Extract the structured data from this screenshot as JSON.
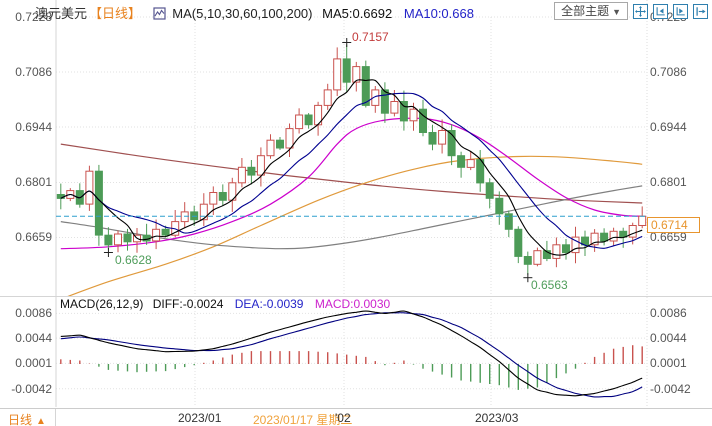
{
  "header": {
    "symbol": "澳元美元",
    "period_tag": "【日线】",
    "ma_label": "MA(5,10,30,60,100,200)",
    "ma5_label": "MA5:0.6692",
    "ma10_label": "MA10:0.668"
  },
  "toolbar": {
    "themes_dropdown": "全部主题",
    "caret": "▼",
    "icons": [
      "pan-crosshair-icon",
      "axis-fit-left-icon",
      "axis-play-right-icon",
      "exit-right-icon"
    ]
  },
  "main_axis": {
    "ticks": [
      "0.7228",
      "0.7086",
      "0.6944",
      "0.6801",
      "0.6659"
    ],
    "price_label": "0.6714"
  },
  "annotations": {
    "high": "0.7157",
    "low1": "0.6628",
    "low2": "0.6563"
  },
  "macd_pane": {
    "header": "MACD(26,12,9)",
    "diff_label": "DIFF:-0.0024",
    "dea_label": "DEA:-0.0039",
    "macd_label": "MACD:0.0030",
    "ticks": [
      "0.0086",
      "0.0044",
      "0.0001",
      "-0.0042"
    ]
  },
  "bottom": {
    "period": "日线",
    "arrow": "▲",
    "x_labels": [
      {
        "text": "2023/01",
        "x": 178
      },
      {
        "text": "'02",
        "x": 335
      },
      {
        "text": "2023/03",
        "x": 475
      }
    ],
    "crosshair_date": "2023/01/17 星期二"
  },
  "chart_data": [
    {
      "type": "candlestick",
      "title": "澳元美元 日线",
      "y_ticks": [
        0.7228,
        0.7086,
        0.6944,
        0.6801,
        0.6659
      ],
      "x_tick_labels": [
        "2023/01",
        "'02",
        "2023/03"
      ],
      "last_price": 0.6714,
      "open_first": 0.677,
      "closes": [
        0.676,
        0.678,
        0.6745,
        0.683,
        0.6665,
        0.664,
        0.6668,
        0.6648,
        0.6665,
        0.665,
        0.668,
        0.6665,
        0.67,
        0.6725,
        0.6705,
        0.6745,
        0.6775,
        0.6755,
        0.68,
        0.684,
        0.682,
        0.687,
        0.691,
        0.689,
        0.694,
        0.6975,
        0.695,
        0.7,
        0.704,
        0.712,
        0.706,
        0.71,
        0.7,
        0.704,
        0.698,
        0.701,
        0.696,
        0.699,
        0.693,
        0.69,
        0.6935,
        0.687,
        0.684,
        0.686,
        0.68,
        0.676,
        0.672,
        0.668,
        0.661,
        0.659,
        0.6625,
        0.6605,
        0.664,
        0.662,
        0.666,
        0.664,
        0.667,
        0.665,
        0.6675,
        0.666,
        0.669,
        0.6714
      ],
      "extremes": {
        "high": {
          "index": 30,
          "value": 0.7157
        },
        "low1": {
          "index": 5,
          "value": 0.6628
        },
        "low2": {
          "index": 49,
          "value": 0.6563
        }
      },
      "moving_averages": {
        "ma5": {
          "color": "#000000",
          "window": 5
        },
        "ma10": {
          "color": "#000090",
          "window": 10
        },
        "ma30": {
          "color": "#cc00cc",
          "points": [
            [
              0,
              0.663
            ],
            [
              5,
              0.6635
            ],
            [
              10,
              0.6648
            ],
            [
              14,
              0.6668
            ],
            [
              18,
              0.67
            ],
            [
              22,
              0.6745
            ],
            [
              26,
              0.6815
            ],
            [
              29,
              0.69
            ],
            [
              31,
              0.694
            ],
            [
              34,
              0.6962
            ],
            [
              38,
              0.6966
            ],
            [
              41,
              0.695
            ],
            [
              44,
              0.6915
            ],
            [
              47,
              0.6865
            ],
            [
              50,
              0.681
            ],
            [
              53,
              0.6762
            ],
            [
              56,
              0.673
            ],
            [
              59,
              0.6716
            ],
            [
              61,
              0.6714
            ]
          ]
        },
        "ma60": {
          "color": "#808080",
          "points": [
            [
              0,
              0.67
            ],
            [
              4,
              0.6685
            ],
            [
              8,
              0.6668
            ],
            [
              12,
              0.6652
            ],
            [
              16,
              0.664
            ],
            [
              20,
              0.6633
            ],
            [
              23,
              0.663
            ],
            [
              26,
              0.6633
            ],
            [
              30,
              0.6645
            ],
            [
              34,
              0.6662
            ],
            [
              38,
              0.6682
            ],
            [
              42,
              0.6702
            ],
            [
              46,
              0.6722
            ],
            [
              50,
              0.6742
            ],
            [
              54,
              0.6762
            ],
            [
              58,
              0.678
            ],
            [
              61,
              0.6792
            ]
          ]
        },
        "ma100": {
          "color": "#e09a3c",
          "points": [
            [
              0,
              0.65
            ],
            [
              5,
              0.6545
            ],
            [
              11,
              0.659
            ],
            [
              16,
              0.6635
            ],
            [
              21,
              0.669
            ],
            [
              27,
              0.6755
            ],
            [
              32,
              0.68
            ],
            [
              37,
              0.6835
            ],
            [
              42,
              0.6858
            ],
            [
              48,
              0.6868
            ],
            [
              53,
              0.6866
            ],
            [
              58,
              0.6856
            ],
            [
              61,
              0.6848
            ]
          ]
        },
        "ma200": {
          "color": "#a05050",
          "points": [
            [
              0,
              0.69
            ],
            [
              8,
              0.687
            ],
            [
              16,
              0.6843
            ],
            [
              24,
              0.6818
            ],
            [
              32,
              0.6796
            ],
            [
              40,
              0.6778
            ],
            [
              48,
              0.6764
            ],
            [
              54,
              0.6755
            ],
            [
              61,
              0.6748
            ]
          ]
        }
      },
      "colors": {
        "up": "#c9524e",
        "down": "#4d9b57",
        "price_line": "#2e9fce",
        "price_box": "#e8952e",
        "grid": "#e2e2e2"
      }
    },
    {
      "type": "macd",
      "params": "26,12,9",
      "y_ticks": [
        0.0086,
        0.0044,
        0.0001,
        -0.0042
      ],
      "diff_last": -0.0024,
      "dea_last": -0.0039,
      "macd_last": 0.003,
      "diff_points": [
        [
          0,
          0.0047
        ],
        [
          2,
          0.0049
        ],
        [
          5,
          0.0036
        ],
        [
          8,
          0.0026
        ],
        [
          11,
          0.0021
        ],
        [
          14,
          0.0022
        ],
        [
          16,
          0.0026
        ],
        [
          18,
          0.0034
        ],
        [
          20,
          0.0044
        ],
        [
          22,
          0.0054
        ],
        [
          24,
          0.0063
        ],
        [
          26,
          0.0072
        ],
        [
          28,
          0.008
        ],
        [
          30,
          0.0086
        ],
        [
          32,
          0.009
        ],
        [
          34,
          0.0086
        ],
        [
          36,
          0.009
        ],
        [
          38,
          0.008
        ],
        [
          40,
          0.0066
        ],
        [
          42,
          0.0048
        ],
        [
          44,
          0.0028
        ],
        [
          46,
          0.0004
        ],
        [
          48,
          -0.0024
        ],
        [
          50,
          -0.0044
        ],
        [
          52,
          -0.0052
        ],
        [
          54,
          -0.0054
        ],
        [
          56,
          -0.005
        ],
        [
          58,
          -0.0042
        ],
        [
          60,
          -0.0031
        ],
        [
          61,
          -0.0024
        ]
      ],
      "dea_points": [
        [
          0,
          0.0043
        ],
        [
          2,
          0.0046
        ],
        [
          5,
          0.0041
        ],
        [
          8,
          0.0033
        ],
        [
          11,
          0.0027
        ],
        [
          14,
          0.0023
        ],
        [
          16,
          0.0023
        ],
        [
          18,
          0.0026
        ],
        [
          20,
          0.0033
        ],
        [
          22,
          0.0043
        ],
        [
          24,
          0.0052
        ],
        [
          26,
          0.0061
        ],
        [
          28,
          0.007
        ],
        [
          30,
          0.0078
        ],
        [
          32,
          0.0084
        ],
        [
          34,
          0.0087
        ],
        [
          36,
          0.0087
        ],
        [
          38,
          0.0084
        ],
        [
          40,
          0.0075
        ],
        [
          42,
          0.0062
        ],
        [
          44,
          0.0044
        ],
        [
          46,
          0.0022
        ],
        [
          48,
          -0.0002
        ],
        [
          50,
          -0.0024
        ],
        [
          52,
          -0.004
        ],
        [
          54,
          -0.005
        ],
        [
          56,
          -0.0056
        ],
        [
          58,
          -0.0055
        ],
        [
          60,
          -0.0047
        ],
        [
          61,
          -0.0039
        ]
      ],
      "histogram_rule": "2x(DIFF-DEA)",
      "colors": {
        "diff": "#000000",
        "dea": "#000080",
        "hist_pos": "#c9524e",
        "hist_neg": "#4d9b57"
      }
    }
  ]
}
